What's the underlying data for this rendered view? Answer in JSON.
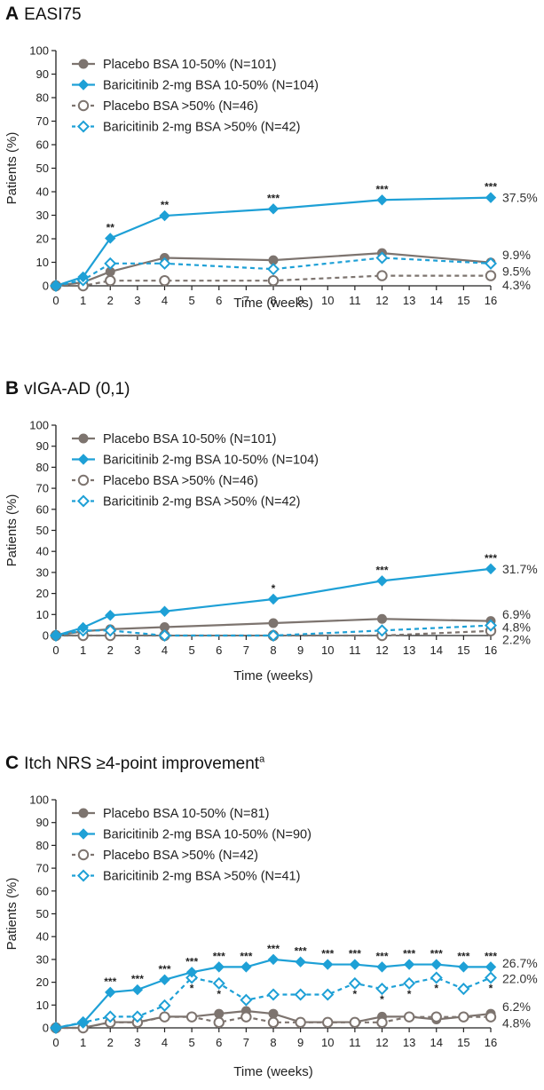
{
  "colors": {
    "placebo": "#7d746f",
    "baricitinib": "#1ea0d6"
  },
  "chart_data": [
    {
      "type": "line",
      "panel_letter": "A",
      "title": "EASI75",
      "title_sup": "",
      "xlabel": "Time (weeks)",
      "ylabel": "Patients (%)",
      "xlim": [
        0,
        16
      ],
      "ylim": [
        0,
        100
      ],
      "xticks": [
        "0",
        "1",
        "2",
        "3",
        "4",
        "5",
        "6",
        "7",
        "8",
        "9",
        "10",
        "11",
        "12",
        "13",
        "14",
        "15",
        "16"
      ],
      "yticks": [
        "0",
        "10",
        "20",
        "30",
        "40",
        "50",
        "60",
        "70",
        "80",
        "90",
        "100"
      ],
      "series": [
        {
          "name": "Placebo BSA 10-50% (N=101)",
          "style": "placebo-solid",
          "x": [
            0,
            1,
            2,
            4,
            8,
            12,
            16
          ],
          "y": [
            0,
            1.5,
            6.0,
            11.9,
            10.9,
            13.9,
            9.9
          ]
        },
        {
          "name": "Baricitinib 2-mg BSA 10-50% (N=104)",
          "style": "bari-solid",
          "x": [
            0,
            1,
            2,
            4,
            8,
            12,
            16
          ],
          "y": [
            0,
            3.8,
            20.2,
            29.8,
            32.7,
            36.5,
            37.5
          ]
        },
        {
          "name": "Placebo BSA >50% (N=46)",
          "style": "placebo-dashed",
          "x": [
            0,
            1,
            2,
            4,
            8,
            12,
            16
          ],
          "y": [
            0,
            0,
            2.2,
            2.2,
            2.2,
            4.3,
            4.3
          ]
        },
        {
          "name": "Baricitinib 2-mg BSA >50% (N=42)",
          "style": "bari-dashed",
          "x": [
            0,
            1,
            2,
            4,
            8,
            12,
            16
          ],
          "y": [
            0,
            2.4,
            9.5,
            9.5,
            7.1,
            11.9,
            9.5
          ]
        }
      ],
      "end_labels": [
        {
          "text": "37.5%",
          "y": 37.5
        },
        {
          "text": "9.9%",
          "y": 13.2
        },
        {
          "text": "9.5%",
          "y": 6.3
        },
        {
          "text": "4.3%",
          "y": 0.3
        }
      ],
      "significance": [
        {
          "x": 2,
          "y": 20.2,
          "text": "**",
          "pos": "above"
        },
        {
          "x": 4,
          "y": 29.8,
          "text": "**",
          "pos": "above"
        },
        {
          "x": 8,
          "y": 32.7,
          "text": "***",
          "pos": "above"
        },
        {
          "x": 12,
          "y": 36.5,
          "text": "***",
          "pos": "above"
        },
        {
          "x": 16,
          "y": 37.5,
          "text": "***",
          "pos": "above"
        }
      ]
    },
    {
      "type": "line",
      "panel_letter": "B",
      "title": "vIGA-AD (0,1)",
      "title_sup": "",
      "xlabel": "Time (weeks)",
      "ylabel": "Patients (%)",
      "xlim": [
        0,
        16
      ],
      "ylim": [
        0,
        100
      ],
      "xticks": [
        "0",
        "1",
        "2",
        "3",
        "4",
        "5",
        "6",
        "7",
        "8",
        "9",
        "10",
        "11",
        "12",
        "13",
        "14",
        "15",
        "16"
      ],
      "yticks": [
        "0",
        "10",
        "20",
        "30",
        "40",
        "50",
        "60",
        "70",
        "80",
        "90",
        "100"
      ],
      "series": [
        {
          "name": "Placebo BSA 10-50% (N=101)",
          "style": "placebo-solid",
          "x": [
            0,
            1,
            2,
            4,
            8,
            12,
            16
          ],
          "y": [
            0,
            2.0,
            3.0,
            4.0,
            5.9,
            7.9,
            6.9
          ]
        },
        {
          "name": "Baricitinib 2-mg BSA 10-50% (N=104)",
          "style": "bari-solid",
          "x": [
            0,
            1,
            2,
            4,
            8,
            12,
            16
          ],
          "y": [
            0,
            3.8,
            9.6,
            11.5,
            17.3,
            26.0,
            31.7
          ]
        },
        {
          "name": "Placebo BSA >50% (N=46)",
          "style": "placebo-dashed",
          "x": [
            0,
            1,
            2,
            4,
            8,
            12,
            16
          ],
          "y": [
            0,
            0,
            0,
            0,
            0,
            0,
            2.2
          ]
        },
        {
          "name": "Baricitinib 2-mg BSA >50% (N=42)",
          "style": "bari-dashed",
          "x": [
            0,
            1,
            2,
            4,
            8,
            12,
            16
          ],
          "y": [
            0,
            2.4,
            2.4,
            0,
            0,
            2.4,
            4.8
          ]
        }
      ],
      "end_labels": [
        {
          "text": "31.7%",
          "y": 31.7
        },
        {
          "text": "6.9%",
          "y": 10.2
        },
        {
          "text": "4.8%",
          "y": 4.0
        },
        {
          "text": "2.2%",
          "y": -2.0
        }
      ],
      "significance": [
        {
          "x": 8,
          "y": 17.3,
          "text": "*",
          "pos": "above"
        },
        {
          "x": 12,
          "y": 26.0,
          "text": "***",
          "pos": "above"
        },
        {
          "x": 16,
          "y": 31.7,
          "text": "***",
          "pos": "above"
        }
      ]
    },
    {
      "type": "line",
      "panel_letter": "C",
      "title": "Itch NRS ≥4-point improvement",
      "title_sup": "a",
      "xlabel": "Time (weeks)",
      "ylabel": "Patients (%)",
      "xlim": [
        0,
        16
      ],
      "ylim": [
        0,
        100
      ],
      "xticks": [
        "0",
        "1",
        "2",
        "3",
        "4",
        "5",
        "6",
        "7",
        "8",
        "9",
        "10",
        "11",
        "12",
        "13",
        "14",
        "15",
        "16"
      ],
      "yticks": [
        "0",
        "10",
        "20",
        "30",
        "40",
        "50",
        "60",
        "70",
        "80",
        "90",
        "100"
      ],
      "series": [
        {
          "name": "Placebo BSA 10-50% (N=81)",
          "style": "placebo-solid",
          "x": [
            0,
            1,
            2,
            3,
            4,
            5,
            6,
            7,
            8,
            9,
            10,
            11,
            12,
            13,
            14,
            15,
            16
          ],
          "y": [
            0,
            0,
            2.5,
            2.5,
            4.9,
            4.9,
            6.2,
            7.4,
            6.2,
            2.5,
            2.5,
            2.5,
            4.9,
            4.9,
            3.7,
            4.9,
            6.2
          ]
        },
        {
          "name": "Baricitinib 2-mg BSA 10-50% (N=90)",
          "style": "bari-solid",
          "x": [
            0,
            1,
            2,
            3,
            4,
            5,
            6,
            7,
            8,
            9,
            10,
            11,
            12,
            13,
            14,
            15,
            16
          ],
          "y": [
            0,
            2.2,
            15.6,
            16.7,
            21.1,
            24.4,
            26.7,
            26.7,
            30.0,
            28.9,
            27.8,
            27.8,
            26.7,
            27.8,
            27.8,
            26.7,
            26.7
          ]
        },
        {
          "name": "Placebo BSA >50% (N=42)",
          "style": "placebo-dashed",
          "x": [
            0,
            1,
            2,
            3,
            4,
            5,
            6,
            7,
            8,
            9,
            10,
            11,
            12,
            13,
            14,
            15,
            16
          ],
          "y": [
            0,
            0,
            2.4,
            2.4,
            4.8,
            4.8,
            2.4,
            4.8,
            2.4,
            2.4,
            2.4,
            2.4,
            2.4,
            4.8,
            4.8,
            4.8,
            4.8
          ]
        },
        {
          "name": "Baricitinib 2-mg BSA >50% (N=41)",
          "style": "bari-dashed",
          "x": [
            0,
            1,
            2,
            3,
            4,
            5,
            6,
            7,
            8,
            9,
            10,
            11,
            12,
            13,
            14,
            15,
            16
          ],
          "y": [
            0,
            2.4,
            4.9,
            4.9,
            9.8,
            22.0,
            19.5,
            12.2,
            14.6,
            14.6,
            14.6,
            19.5,
            17.1,
            19.5,
            22.0,
            17.1,
            22.0
          ]
        }
      ],
      "end_labels": [
        {
          "text": "26.7%",
          "y": 28.5
        },
        {
          "text": "22.0%",
          "y": 21.5
        },
        {
          "text": "6.2%",
          "y": 9.3
        },
        {
          "text": "4.8%",
          "y": 2.2
        }
      ],
      "significance": [
        {
          "x": 2,
          "y": 15.6,
          "text": "***",
          "pos": "above"
        },
        {
          "x": 3,
          "y": 16.7,
          "text": "***",
          "pos": "above"
        },
        {
          "x": 4,
          "y": 21.1,
          "text": "***",
          "pos": "above"
        },
        {
          "x": 5,
          "y": 24.4,
          "text": "***",
          "pos": "above"
        },
        {
          "x": 6,
          "y": 26.7,
          "text": "***",
          "pos": "above"
        },
        {
          "x": 7,
          "y": 26.7,
          "text": "***",
          "pos": "above"
        },
        {
          "x": 8,
          "y": 30.0,
          "text": "***",
          "pos": "above"
        },
        {
          "x": 9,
          "y": 28.9,
          "text": "***",
          "pos": "above"
        },
        {
          "x": 10,
          "y": 27.8,
          "text": "***",
          "pos": "above"
        },
        {
          "x": 11,
          "y": 27.8,
          "text": "***",
          "pos": "above"
        },
        {
          "x": 12,
          "y": 26.7,
          "text": "***",
          "pos": "above"
        },
        {
          "x": 13,
          "y": 27.8,
          "text": "***",
          "pos": "above"
        },
        {
          "x": 14,
          "y": 27.8,
          "text": "***",
          "pos": "above"
        },
        {
          "x": 15,
          "y": 26.7,
          "text": "***",
          "pos": "above"
        },
        {
          "x": 16,
          "y": 26.7,
          "text": "***",
          "pos": "above"
        },
        {
          "x": 5,
          "y": 22.0,
          "text": "*",
          "pos": "below"
        },
        {
          "x": 6,
          "y": 19.5,
          "text": "*",
          "pos": "below"
        },
        {
          "x": 11,
          "y": 19.5,
          "text": "*",
          "pos": "below"
        },
        {
          "x": 12,
          "y": 17.1,
          "text": "*",
          "pos": "below"
        },
        {
          "x": 13,
          "y": 19.5,
          "text": "*",
          "pos": "below"
        },
        {
          "x": 14,
          "y": 22.0,
          "text": "*",
          "pos": "below"
        },
        {
          "x": 16,
          "y": 22.0,
          "text": "*",
          "pos": "below"
        }
      ]
    }
  ]
}
